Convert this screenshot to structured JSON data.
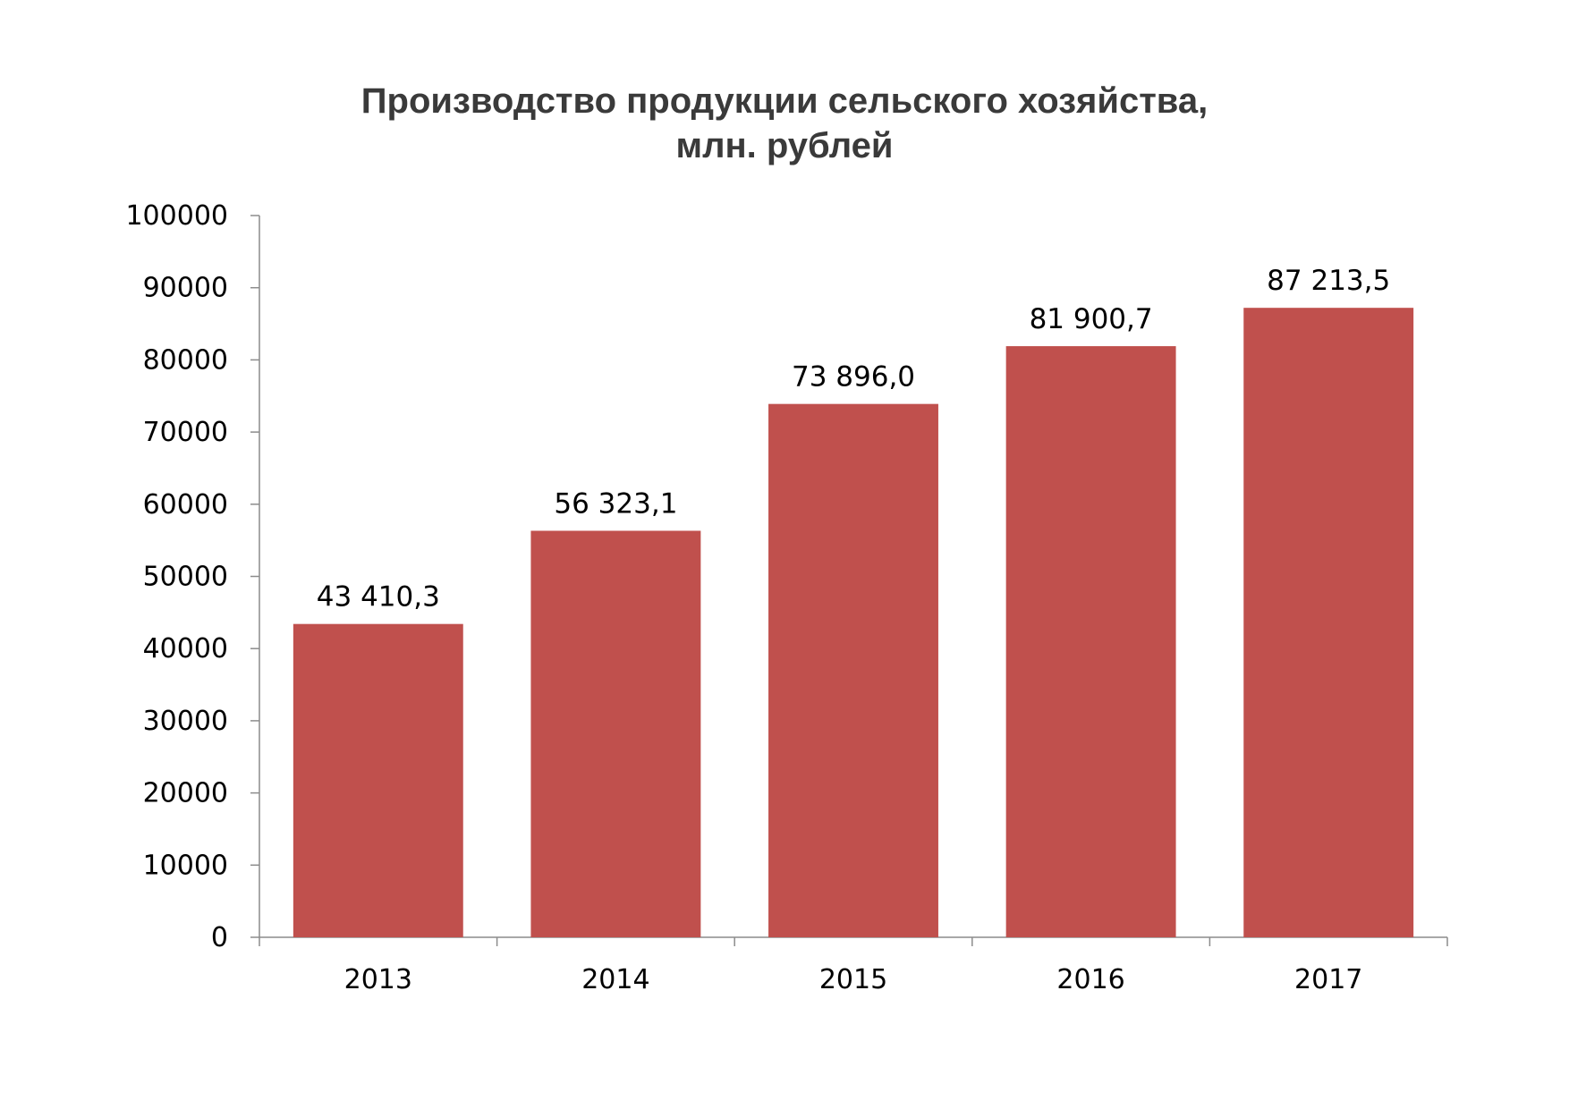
{
  "chart_data": {
    "type": "bar",
    "title_line1": "Производство продукции сельского хозяйства,",
    "title_line2": "млн. рублей",
    "categories": [
      "2013",
      "2014",
      "2015",
      "2016",
      "2017"
    ],
    "values": [
      43410.3,
      56323.1,
      73896.0,
      81900.7,
      87213.5
    ],
    "data_labels": [
      "43 410,3",
      "56 323,1",
      "73 896,0",
      "81 900,7",
      "87 213,5"
    ],
    "ylim": [
      0,
      100000
    ],
    "yticks": [
      "0",
      "10000",
      "20000",
      "30000",
      "40000",
      "50000",
      "60000",
      "70000",
      "80000",
      "90000",
      "100000"
    ],
    "xlabel": "",
    "ylabel": "",
    "grid": false,
    "legend": "none",
    "bar_color": "#c0504d",
    "axis_color": "#8c8c8c"
  }
}
